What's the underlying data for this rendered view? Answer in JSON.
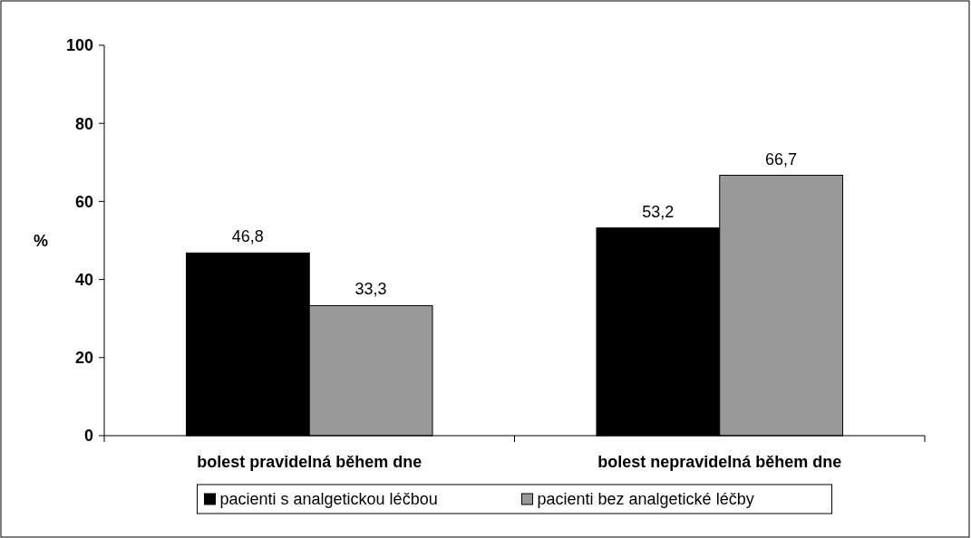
{
  "chart_data": {
    "type": "bar",
    "ylabel": "%",
    "categories": [
      "bolest pravidelná během dne",
      "bolest nepravidelná během dne"
    ],
    "series": [
      {
        "name": "pacienti s analgetickou léčbou",
        "color": "#000000",
        "values": [
          46.8,
          53.2
        ],
        "value_labels": [
          "46,8",
          "53,2"
        ]
      },
      {
        "name": "pacienti bez analgetické léčby",
        "color": "#999999",
        "values": [
          33.3,
          66.7
        ],
        "value_labels": [
          "33,3",
          "66,7"
        ]
      }
    ],
    "ylim": [
      0,
      100
    ],
    "yticks": [
      0,
      20,
      40,
      60,
      80,
      100
    ],
    "grid": false,
    "legend": "bottom"
  }
}
